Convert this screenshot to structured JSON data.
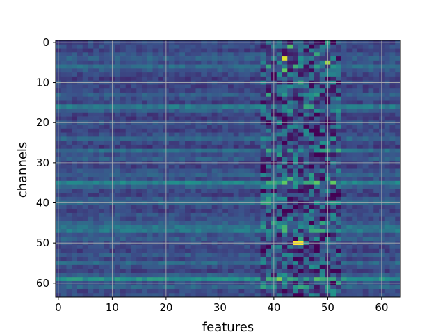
{
  "chart_data": {
    "type": "heatmap",
    "title": "",
    "xlabel": "features",
    "ylabel": "channels",
    "colormap": "viridis",
    "grid": true,
    "x_range": [
      0,
      63
    ],
    "y_range": [
      0,
      63
    ],
    "y_axis_inverted": true,
    "x_ticks": [
      "0",
      "10",
      "20",
      "30",
      "40",
      "50",
      "60"
    ],
    "y_ticks": [
      "0",
      "10",
      "20",
      "30",
      "40",
      "50",
      "60"
    ],
    "n_rows": 64,
    "n_cols": 64,
    "rows": [
      {
        "base": 0.22,
        "peaks": [
          {
            "col": 50,
            "value": 0.55
          }
        ]
      },
      {
        "base": 0.24,
        "peaks": [
          {
            "col": 43,
            "value": 0.7
          }
        ]
      },
      {
        "base": 0.2,
        "peaks": []
      },
      {
        "base": 0.26,
        "peaks": [
          {
            "col": 48,
            "value": 0.6
          }
        ]
      },
      {
        "base": 0.3,
        "peaks": [
          {
            "col": 42,
            "value": 0.95
          }
        ]
      },
      {
        "base": 0.25,
        "peaks": [
          {
            "col": 50,
            "value": 0.85
          }
        ]
      },
      {
        "base": 0.35,
        "peaks": [
          {
            "col": 46,
            "value": 0.05
          }
        ]
      },
      {
        "base": 0.28,
        "peaks": [
          {
            "col": 42,
            "value": 0.75
          }
        ]
      },
      {
        "base": 0.22,
        "peaks": []
      },
      {
        "base": 0.18,
        "peaks": []
      },
      {
        "base": 0.24,
        "peaks": [
          {
            "col": 45,
            "value": 0.6
          }
        ]
      },
      {
        "base": 0.2,
        "peaks": []
      },
      {
        "base": 0.22,
        "peaks": []
      },
      {
        "base": 0.3,
        "peaks": [
          {
            "col": 48,
            "value": 0.55
          }
        ]
      },
      {
        "base": 0.24,
        "peaks": []
      },
      {
        "base": 0.2,
        "peaks": []
      },
      {
        "base": 0.4,
        "peaks": [
          {
            "col": 46,
            "value": 0.6
          }
        ]
      },
      {
        "base": 0.3,
        "peaks": []
      },
      {
        "base": 0.2,
        "peaks": []
      },
      {
        "base": 0.18,
        "peaks": []
      },
      {
        "base": 0.26,
        "peaks": []
      },
      {
        "base": 0.22,
        "peaks": []
      },
      {
        "base": 0.2,
        "peaks": []
      },
      {
        "base": 0.24,
        "peaks": []
      },
      {
        "base": 0.32,
        "peaks": []
      },
      {
        "base": 0.22,
        "peaks": []
      },
      {
        "base": 0.18,
        "peaks": []
      },
      {
        "base": 0.36,
        "peaks": [
          {
            "col": 50,
            "value": 0.6
          }
        ]
      },
      {
        "base": 0.24,
        "peaks": []
      },
      {
        "base": 0.3,
        "peaks": []
      },
      {
        "base": 0.22,
        "peaks": []
      },
      {
        "base": 0.2,
        "peaks": []
      },
      {
        "base": 0.26,
        "peaks": []
      },
      {
        "base": 0.3,
        "peaks": []
      },
      {
        "base": 0.24,
        "peaks": [
          {
            "col": 43,
            "value": 0.65
          }
        ]
      },
      {
        "base": 0.45,
        "peaks": [
          {
            "col": 42,
            "value": 0.75
          }
        ]
      },
      {
        "base": 0.3,
        "peaks": []
      },
      {
        "base": 0.22,
        "peaks": []
      },
      {
        "base": 0.2,
        "peaks": []
      },
      {
        "base": 0.28,
        "peaks": []
      },
      {
        "base": 0.34,
        "peaks": [
          {
            "col": 45,
            "value": 0.05
          }
        ]
      },
      {
        "base": 0.22,
        "peaks": []
      },
      {
        "base": 0.2,
        "peaks": []
      },
      {
        "base": 0.26,
        "peaks": []
      },
      {
        "base": 0.24,
        "peaks": []
      },
      {
        "base": 0.3,
        "peaks": []
      },
      {
        "base": 0.38,
        "peaks": [
          {
            "col": 42,
            "value": 0.65
          }
        ]
      },
      {
        "base": 0.4,
        "peaks": [
          {
            "col": 47,
            "value": 0.6
          }
        ]
      },
      {
        "base": 0.26,
        "peaks": []
      },
      {
        "base": 0.3,
        "peaks": []
      },
      {
        "base": 0.24,
        "peaks": [
          {
            "col": 44,
            "value": 1.0
          },
          {
            "col": 45,
            "value": 1.0
          }
        ]
      },
      {
        "base": 0.22,
        "peaks": []
      },
      {
        "base": 0.2,
        "peaks": []
      },
      {
        "base": 0.28,
        "peaks": []
      },
      {
        "base": 0.22,
        "peaks": []
      },
      {
        "base": 0.34,
        "peaks": []
      },
      {
        "base": 0.24,
        "peaks": []
      },
      {
        "base": 0.2,
        "peaks": []
      },
      {
        "base": 0.3,
        "peaks": []
      },
      {
        "base": 0.5,
        "peaks": [
          {
            "col": 41,
            "value": 0.8
          },
          {
            "col": 48,
            "value": 0.7
          }
        ]
      },
      {
        "base": 0.26,
        "peaks": []
      },
      {
        "base": 0.32,
        "peaks": [
          {
            "col": 45,
            "value": 0.6
          }
        ]
      },
      {
        "base": 0.22,
        "peaks": []
      },
      {
        "base": 0.24,
        "peaks": []
      }
    ]
  }
}
